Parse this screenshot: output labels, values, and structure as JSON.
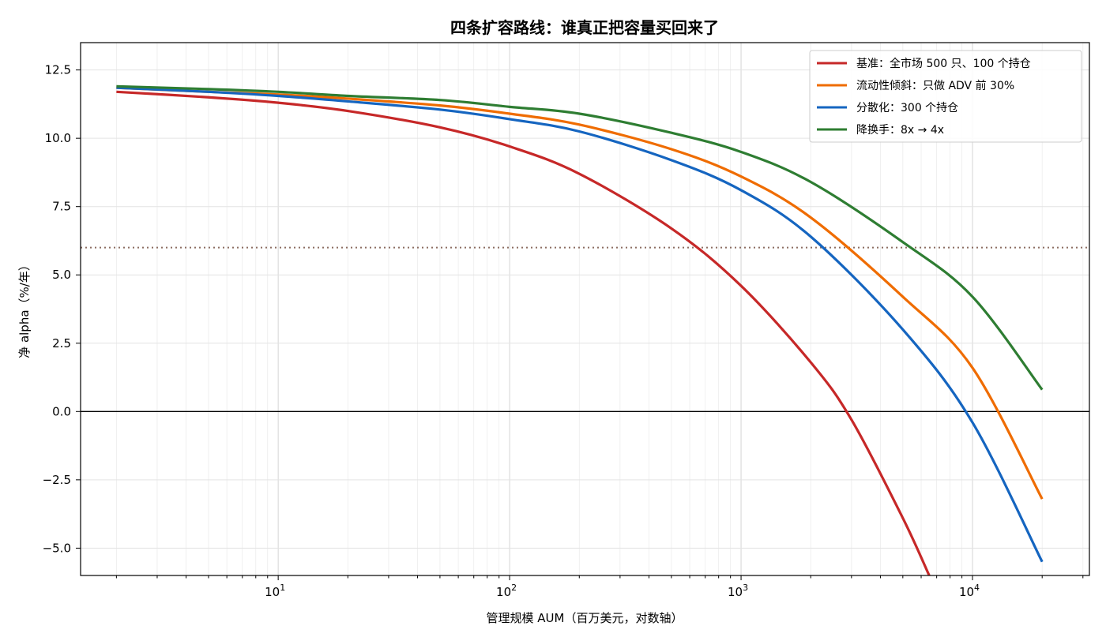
{
  "chart_data": {
    "type": "line",
    "title": "四条扩容路线：谁真正把容量买回来了",
    "xlabel": "管理规模 AUM（百万美元，对数轴）",
    "ylabel": "净 alpha（%/年）",
    "x_scale": "log",
    "xlim": [
      1.4,
      32000
    ],
    "ylim": [
      -6.0,
      13.5
    ],
    "x_ticks": [
      {
        "value": 10,
        "base": "10",
        "exp": "1"
      },
      {
        "value": 100,
        "base": "10",
        "exp": "2"
      },
      {
        "value": 1000,
        "base": "10",
        "exp": "3"
      },
      {
        "value": 10000,
        "base": "10",
        "exp": "4"
      }
    ],
    "y_ticks": [
      {
        "value": -5.0,
        "label": "−5.0"
      },
      {
        "value": -2.5,
        "label": "−2.5"
      },
      {
        "value": 0.0,
        "label": "0.0"
      },
      {
        "value": 2.5,
        "label": "2.5"
      },
      {
        "value": 5.0,
        "label": "5.0"
      },
      {
        "value": 7.5,
        "label": "7.5"
      },
      {
        "value": 10.0,
        "label": "10.0"
      },
      {
        "value": 12.5,
        "label": "12.5"
      }
    ],
    "grid": true,
    "legend_position": "top-right",
    "reference_lines": [
      {
        "orientation": "horizontal",
        "y": 6.0,
        "style": "dotted",
        "color": "#8c6d62"
      },
      {
        "orientation": "horizontal",
        "y": 0.0,
        "style": "solid",
        "color": "#000000"
      }
    ],
    "series": [
      {
        "name": "基准：全市场 500 只、100 个持仓",
        "color": "#c62828",
        "points": [
          [
            2,
            11.7
          ],
          [
            5,
            11.5
          ],
          [
            10,
            11.3
          ],
          [
            20,
            11.0
          ],
          [
            50,
            10.4
          ],
          [
            100,
            9.7
          ],
          [
            200,
            8.7
          ],
          [
            500,
            6.7
          ],
          [
            1000,
            4.6
          ],
          [
            2000,
            1.8
          ],
          [
            3000,
            -0.3
          ],
          [
            5000,
            -3.9
          ],
          [
            6500,
            -6.0
          ]
        ]
      },
      {
        "name": "流动性倾斜：只做 ADV 前 30%",
        "color": "#ef6c00",
        "points": [
          [
            2,
            11.85
          ],
          [
            5,
            11.7
          ],
          [
            10,
            11.6
          ],
          [
            20,
            11.45
          ],
          [
            50,
            11.2
          ],
          [
            100,
            10.9
          ],
          [
            200,
            10.5
          ],
          [
            500,
            9.6
          ],
          [
            1000,
            8.6
          ],
          [
            2000,
            7.1
          ],
          [
            5000,
            4.2
          ],
          [
            10000,
            1.6
          ],
          [
            20000,
            -3.2
          ]
        ]
      },
      {
        "name": "分散化：300 个持仓",
        "color": "#1565c0",
        "points": [
          [
            2,
            11.85
          ],
          [
            5,
            11.7
          ],
          [
            10,
            11.55
          ],
          [
            20,
            11.35
          ],
          [
            50,
            11.05
          ],
          [
            100,
            10.7
          ],
          [
            200,
            10.25
          ],
          [
            500,
            9.2
          ],
          [
            1000,
            8.1
          ],
          [
            2000,
            6.4
          ],
          [
            5000,
            3.0
          ],
          [
            10000,
            -0.4
          ],
          [
            20000,
            -5.5
          ]
        ]
      },
      {
        "name": "降换手：8x → 4x",
        "color": "#2e7d32",
        "points": [
          [
            2,
            11.9
          ],
          [
            5,
            11.8
          ],
          [
            10,
            11.7
          ],
          [
            20,
            11.55
          ],
          [
            50,
            11.4
          ],
          [
            100,
            11.15
          ],
          [
            200,
            10.9
          ],
          [
            500,
            10.2
          ],
          [
            1000,
            9.5
          ],
          [
            2000,
            8.4
          ],
          [
            5000,
            6.2
          ],
          [
            10000,
            4.2
          ],
          [
            20000,
            0.8
          ]
        ]
      }
    ]
  }
}
